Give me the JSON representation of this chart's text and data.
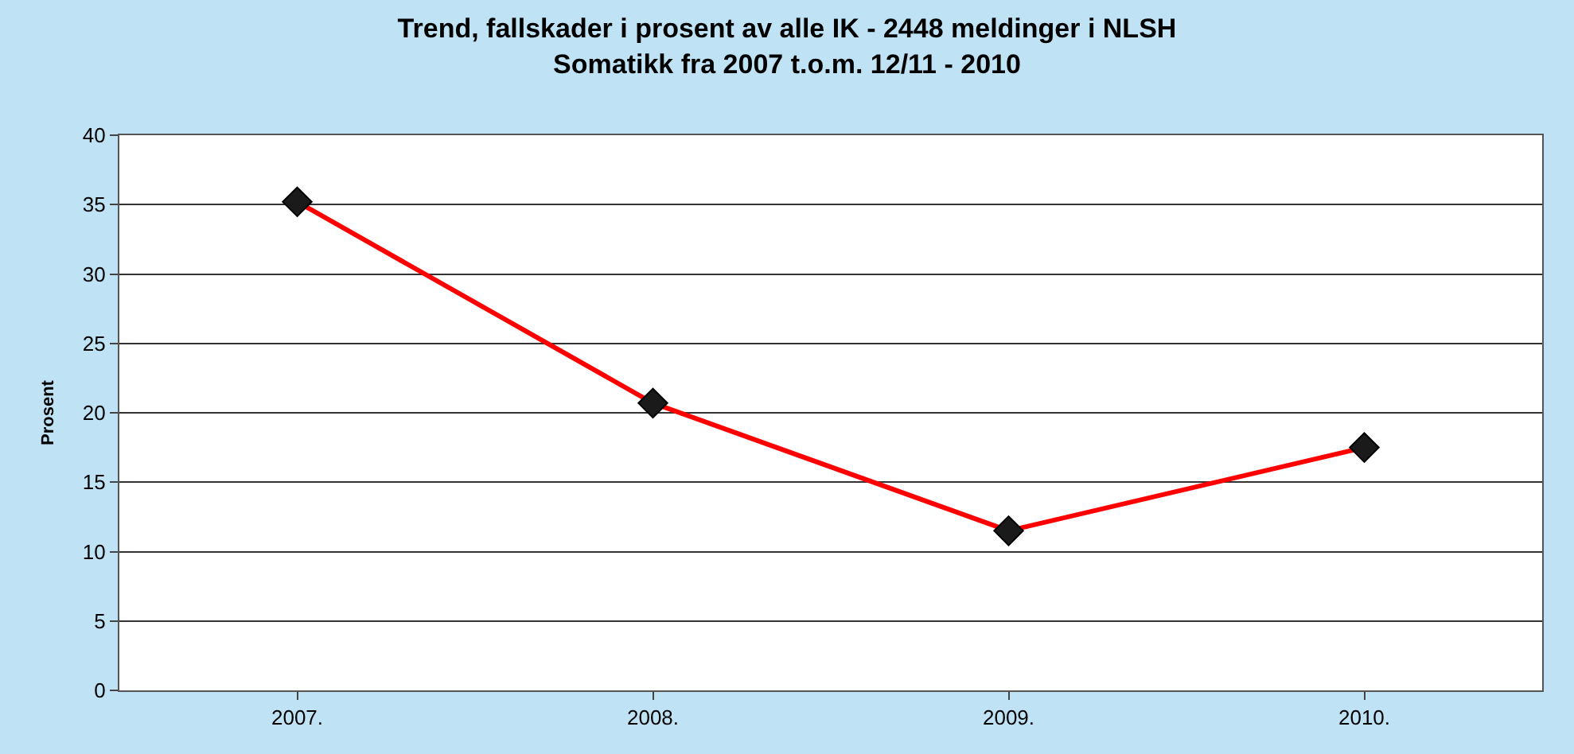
{
  "chart_data": {
    "type": "line",
    "title": "Trend, fallskader i prosent av alle IK - 2448 meldinger i NLSH\nSomatikk fra 2007 t.o.m. 12/11 - 2010",
    "ylabel": "Prosent",
    "categories": [
      "2007.",
      "2008.",
      "2009.",
      "2010."
    ],
    "series": [
      {
        "color": "#ff0000",
        "values": [
          35.2,
          20.7,
          11.5,
          17.5
        ]
      }
    ],
    "ylim": [
      0,
      40
    ],
    "yticks": [
      0,
      5,
      10,
      15,
      20,
      25,
      30,
      35,
      40
    ],
    "grid": "y",
    "marker": "diamond",
    "line_style": "solid"
  }
}
